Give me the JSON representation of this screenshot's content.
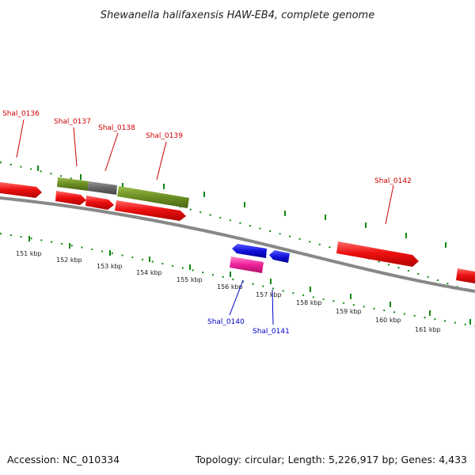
{
  "header": {
    "title": "Shewanella halifaxensis HAW-EB4, complete genome"
  },
  "footer": {
    "accession": "Accession: NC_010334",
    "summary": "Topology: circular; Length: 5,226,917 bp; Genes: 4,433"
  },
  "colors": {
    "forward_gene": "#ee1111",
    "reverse_gene": "#1111dd",
    "pink_feature": "#ee2299",
    "olive_feature": "#6b8e23",
    "gray_feature": "#666666",
    "tick": "#118811",
    "backbone": "#888888",
    "forward_label": "#cc0000",
    "reverse_label": "#0000cc"
  },
  "scale_labels": [
    "151 kbp",
    "152 kbp",
    "153 kbp",
    "154 kbp",
    "155 kbp",
    "156 kbp",
    "157 kbp",
    "158 kbp",
    "159 kbp",
    "160 kbp",
    "161 kbp"
  ],
  "gene_labels": [
    {
      "name": "Shal_0136",
      "strand": "forward"
    },
    {
      "name": "Shal_0137",
      "strand": "forward"
    },
    {
      "name": "Shal_0138",
      "strand": "forward"
    },
    {
      "name": "Shal_0139",
      "strand": "forward"
    },
    {
      "name": "Shal_0142",
      "strand": "forward"
    },
    {
      "name": "Shal_0140",
      "strand": "reverse"
    },
    {
      "name": "Shal_0141",
      "strand": "reverse"
    }
  ]
}
